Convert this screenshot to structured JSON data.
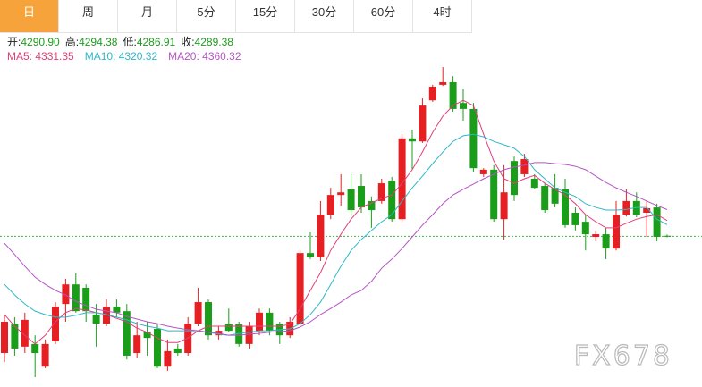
{
  "tabs": [
    "日",
    "周",
    "月",
    "5分",
    "15分",
    "30分",
    "60分",
    "4时"
  ],
  "active_tab": 0,
  "ohlc_info": [
    {
      "label": "开:",
      "value": "4290.90"
    },
    {
      "label": "高:",
      "value": "4294.38"
    },
    {
      "label": "低:",
      "value": "4286.91"
    },
    {
      "label": "收:",
      "value": "4289.38"
    }
  ],
  "watermark": "FX678",
  "chart_data": {
    "type": "candlestick",
    "up_color": "#e51f22",
    "down_color": "#1a9e1a",
    "last_line_color": "#3cb043",
    "ylim": [
      3890,
      4750
    ],
    "open": [
      3980,
      4058,
      3997,
      4004,
      3944,
      4011,
      4110,
      4162,
      4153,
      4082,
      4058,
      4103,
      4091,
      3980,
      4035,
      4044,
      3944,
      3992,
      3980,
      4058,
      4115,
      4027,
      4058,
      4056,
      4004,
      4039,
      4087,
      4058,
      4027,
      4058,
      4245,
      4234,
      4347,
      4399,
      4414,
      4423,
      4383,
      4383,
      4437,
      4335,
      4549,
      4541,
      4650,
      4691,
      4698,
      4643,
      4627,
      4454,
      4466,
      4335,
      4489,
      4454,
      4442,
      4423,
      4418,
      4414,
      4352,
      4328,
      4288,
      4295,
      4257,
      4347,
      4383,
      4352,
      4366,
      4290.9
    ],
    "high": [
      4082,
      4075,
      4087,
      4027,
      4016,
      4115,
      4177,
      4191,
      4162,
      4110,
      4122,
      4122,
      4110,
      4063,
      4063,
      4058,
      4016,
      4004,
      4075,
      4153,
      4122,
      4051,
      4098,
      4063,
      4063,
      4098,
      4098,
      4063,
      4075,
      4252,
      4300,
      4383,
      4418,
      4454,
      4454,
      4454,
      4395,
      4442,
      4447,
      4560,
      4572,
      4655,
      4691,
      4738,
      4714,
      4679,
      4643,
      4470,
      4478,
      4478,
      4501,
      4508,
      4454,
      4430,
      4454,
      4442,
      4366,
      4347,
      4305,
      4312,
      4383,
      4414,
      4406,
      4383,
      4376,
      4294.38
    ],
    "low": [
      3956,
      3973,
      3980,
      3916,
      3940,
      4004,
      4063,
      4087,
      4063,
      3997,
      4051,
      4075,
      3963,
      3968,
      3973,
      3940,
      3933,
      3973,
      3973,
      4051,
      4016,
      4016,
      4035,
      3997,
      3992,
      4027,
      4027,
      4004,
      4020,
      4051,
      4229,
      4224,
      4335,
      4371,
      4347,
      4352,
      4312,
      4376,
      4328,
      4328,
      4466,
      4537,
      4646,
      4688,
      4620,
      4596,
      4461,
      4447,
      4328,
      4281,
      4383,
      4447,
      4414,
      4352,
      4366,
      4312,
      4305,
      4252,
      4276,
      4229,
      4252,
      4342,
      4340,
      4288,
      4276,
      4286.91
    ],
    "close": [
      4063,
      3992,
      4068,
      3980,
      4004,
      4103,
      4162,
      4091,
      4091,
      4058,
      4103,
      4087,
      3973,
      4027,
      4020,
      3944,
      3985,
      3980,
      4058,
      4115,
      4027,
      4039,
      4039,
      4004,
      4051,
      4087,
      4039,
      4027,
      4063,
      4245,
      4234,
      4347,
      4399,
      4406,
      4359,
      4366,
      4359,
      4430,
      4335,
      4549,
      4541,
      4636,
      4686,
      4698,
      4627,
      4627,
      4470,
      4466,
      4335,
      4406,
      4399,
      4494,
      4418,
      4359,
      4376,
      4319,
      4319,
      4295,
      4295,
      4257,
      4347,
      4383,
      4347,
      4364,
      4288,
      4289.38
    ],
    "series": [
      {
        "name": "MA5: 4331.35",
        "color": "#e0407a",
        "values": [
          4082,
          4051,
          4027,
          4004,
          4027,
          4063,
          4087,
          4098,
          4094,
          4087,
          4082,
          4072,
          4063,
          4046,
          4035,
          4020,
          4008,
          4008,
          4020,
          4039,
          4051,
          4051,
          4051,
          4051,
          4051,
          4051,
          4051,
          4051,
          4056,
          4098,
          4146,
          4193,
          4252,
          4295,
          4335,
          4366,
          4378,
          4390,
          4399,
          4430,
          4466,
          4513,
          4565,
          4608,
          4636,
          4650,
          4636,
          4560,
          4489,
          4442,
          4430,
          4442,
          4451,
          4430,
          4414,
          4399,
          4376,
          4347,
          4328,
          4312,
          4312,
          4324,
          4335,
          4342,
          4347,
          4331.35
        ]
      },
      {
        "name": "MA10: 4320.32",
        "color": "#2fb8c8",
        "values": [
          4162,
          4134,
          4110,
          4091,
          4082,
          4075,
          4075,
          4080,
          4087,
          4087,
          4082,
          4075,
          4068,
          4058,
          4051,
          4046,
          4039,
          4039,
          4039,
          4039,
          4035,
          4030,
          4027,
          4032,
          4035,
          4039,
          4039,
          4042,
          4044,
          4058,
          4082,
          4115,
          4162,
          4210,
          4252,
          4281,
          4305,
          4328,
          4347,
          4383,
          4418,
          4449,
          4482,
          4513,
          4541,
          4556,
          4560,
          4553,
          4541,
          4532,
          4523,
          4501,
          4466,
          4442,
          4418,
          4406,
          4395,
          4376,
          4366,
          4359,
          4359,
          4361,
          4366,
          4366,
          4335,
          4320.32
        ]
      },
      {
        "name": "MA20: 4360.32",
        "color": "#b455c4",
        "values": [
          4271,
          4241,
          4210,
          4181,
          4162,
          4146,
          4134,
          4117,
          4106,
          4096,
          4091,
          4087,
          4077,
          4070,
          4063,
          4058,
          4051,
          4046,
          4042,
          4039,
          4035,
          4032,
          4027,
          4027,
          4030,
          4032,
          4035,
          4037,
          4039,
          4049,
          4063,
          4082,
          4098,
          4115,
          4134,
          4146,
          4170,
          4205,
          4229,
          4257,
          4288,
          4319,
          4347,
          4376,
          4399,
          4414,
          4428,
          4442,
          4454,
          4466,
          4473,
          4478,
          4485,
          4485,
          4482,
          4480,
          4475,
          4466,
          4449,
          4432,
          4418,
          4406,
          4395,
          4383,
          4371,
          4360.32
        ]
      }
    ]
  }
}
